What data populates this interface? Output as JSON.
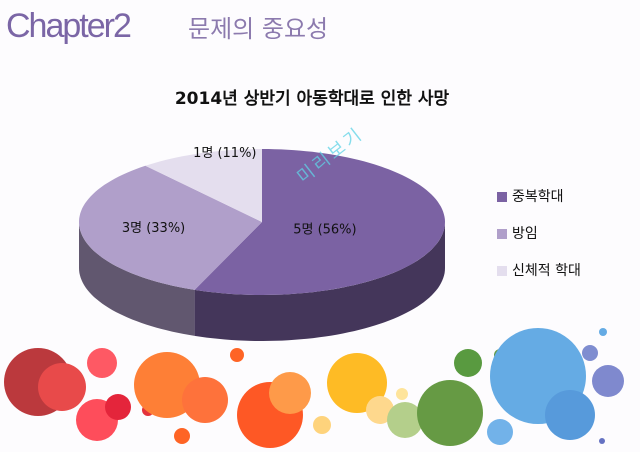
{
  "header": {
    "chapter": "Chapter2",
    "subtitle": "문제의 중요성"
  },
  "watermark": "미리보기",
  "chart_data": {
    "type": "pie",
    "title": "2014년 상반기 아동학대로 인한 사망",
    "categories": [
      "중복학대",
      "방임",
      "신체적 학대"
    ],
    "values": [
      56,
      33,
      11
    ],
    "value_labels": [
      "5명 (56%)",
      "3명 (33%)",
      "1명 (11%)"
    ],
    "colors": [
      "#7b62a3",
      "#b09fca",
      "#e4deee"
    ],
    "legend": "right"
  }
}
